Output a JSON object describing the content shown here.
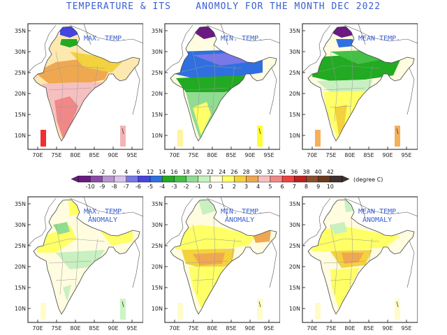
{
  "title": "TEMPERATURE & ITS    ANOMOLY FOR THE MONTH DEC 2022",
  "axes": {
    "lat_labels": [
      "35N",
      "30N",
      "25N",
      "20N",
      "15N",
      "10N"
    ],
    "lon_labels": [
      "70E",
      "75E",
      "80E",
      "85E",
      "90E",
      "95E"
    ]
  },
  "panels": [
    {
      "id": "max-temp",
      "label": [
        "MAX. TEMP."
      ],
      "kind": "max",
      "legend_colors": [
        "#f03030",
        "#f4b4b4"
      ]
    },
    {
      "id": "min-temp",
      "label": [
        "MIN. TEMP."
      ],
      "kind": "min",
      "legend_colors": [
        "#fff4a0",
        "#ffff30"
      ]
    },
    {
      "id": "mean-temp",
      "label": [
        "MEAN TEMP."
      ],
      "kind": "mean",
      "legend_colors": [
        "#f5b05a",
        "#f5b05a"
      ]
    },
    {
      "id": "max-temp-anomaly",
      "label": [
        "MAX. TEMP.",
        "ANOMALY"
      ],
      "kind": "max_anom",
      "legend_colors": [
        "#fffcc8",
        "#ccf5c0"
      ]
    },
    {
      "id": "min-temp-anomaly",
      "label": [
        "MIN. TEMP.",
        "ANOMALY"
      ],
      "kind": "min_anom",
      "legend_colors": [
        "#fffcc8",
        "#fffcc8"
      ]
    },
    {
      "id": "mean-temp-anomaly",
      "label": [
        "MEAN TEMP.",
        "ANOMALY"
      ],
      "kind": "mean_anom",
      "legend_colors": [
        "#fffcc8",
        "#fffcc8"
      ]
    }
  ],
  "colorbar": {
    "top_labels": [
      "-4",
      "-2",
      "0",
      "4",
      "6",
      "12",
      "14",
      "16",
      "18",
      "20",
      "22",
      "24",
      "26",
      "28",
      "30",
      "32",
      "34",
      "36",
      "38",
      "40",
      "42"
    ],
    "bottom_labels": [
      "-10",
      "-9",
      "-8",
      "-7",
      "-6",
      "-5",
      "-4",
      "-3",
      "-2",
      "-1",
      "0",
      "1",
      "2",
      "3",
      "4",
      "5",
      "6",
      "7",
      "8",
      "9",
      "10"
    ],
    "unit": "(degree C)",
    "colors": [
      "#6a1a80",
      "#8a4aa8",
      "#b894d0",
      "#d8c4ec",
      "#7878e8",
      "#4444e0",
      "#2f6fe0",
      "#22aa22",
      "#44c044",
      "#90dc90",
      "#c8f0c0",
      "#fffce0",
      "#ffff66",
      "#f4d23e",
      "#f0a850",
      "#f6c0c0",
      "#f08888",
      "#f04040",
      "#c02020",
      "#8a4e2e",
      "#6a3a1e",
      "#403030"
    ]
  }
}
